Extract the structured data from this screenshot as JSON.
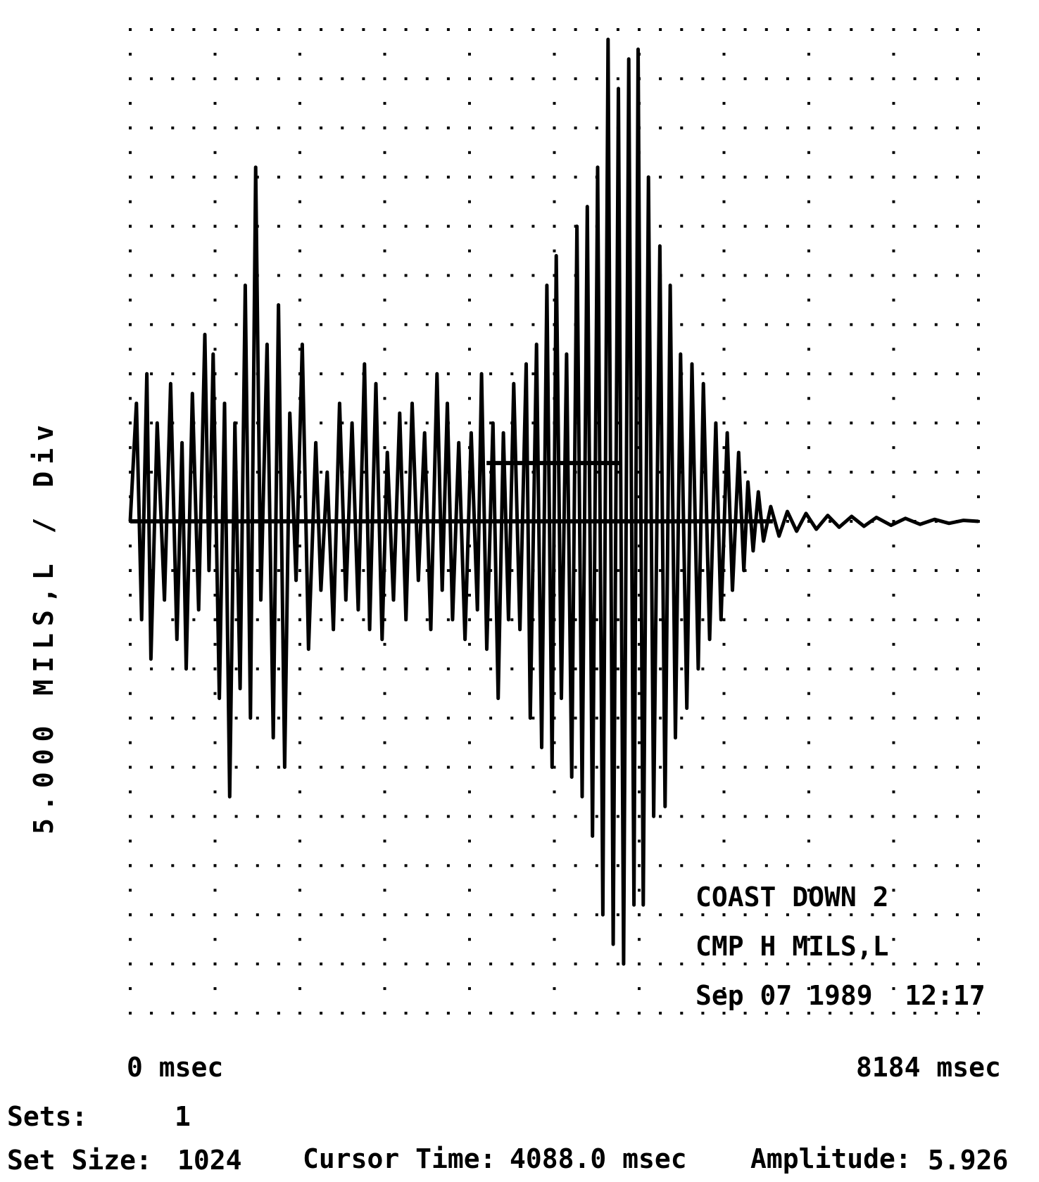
{
  "chart_data": {
    "type": "line",
    "annotation_lines": [
      "COAST DOWN 2",
      "CMP H MILS,L",
      "Sep 07 1989  12:17"
    ],
    "ylabel": "5.000 MILS,L / Div",
    "xlabel_start": "0 msec",
    "xlabel_end": "8184 msec",
    "xlim": [
      0,
      8184
    ],
    "ylim": [
      -50,
      50
    ],
    "grid": true,
    "grid_divisions": {
      "x": 10,
      "y": 20
    },
    "cursor_time": 4088.0,
    "series": [
      {
        "points": [
          [
            0,
            0
          ],
          [
            60,
            12
          ],
          [
            110,
            -10
          ],
          [
            160,
            15
          ],
          [
            200,
            -14
          ],
          [
            260,
            10
          ],
          [
            330,
            -8
          ],
          [
            390,
            14
          ],
          [
            450,
            -12
          ],
          [
            500,
            8
          ],
          [
            540,
            -15
          ],
          [
            600,
            13
          ],
          [
            660,
            -9
          ],
          [
            720,
            19
          ],
          [
            760,
            -5
          ],
          [
            800,
            17
          ],
          [
            860,
            -18
          ],
          [
            910,
            12
          ],
          [
            960,
            -28
          ],
          [
            1010,
            10
          ],
          [
            1060,
            -17
          ],
          [
            1110,
            24
          ],
          [
            1160,
            -20
          ],
          [
            1210,
            36
          ],
          [
            1260,
            -8
          ],
          [
            1320,
            18
          ],
          [
            1380,
            -22
          ],
          [
            1430,
            22
          ],
          [
            1490,
            -25
          ],
          [
            1540,
            11
          ],
          [
            1600,
            -6
          ],
          [
            1660,
            18
          ],
          [
            1720,
            -13
          ],
          [
            1790,
            8
          ],
          [
            1840,
            -7
          ],
          [
            1900,
            5
          ],
          [
            1960,
            -11
          ],
          [
            2020,
            12
          ],
          [
            2080,
            -8
          ],
          [
            2140,
            10
          ],
          [
            2200,
            -9
          ],
          [
            2260,
            16
          ],
          [
            2310,
            -11
          ],
          [
            2370,
            14
          ],
          [
            2430,
            -12
          ],
          [
            2480,
            7
          ],
          [
            2540,
            -8
          ],
          [
            2600,
            11
          ],
          [
            2660,
            -10
          ],
          [
            2720,
            12
          ],
          [
            2780,
            -6
          ],
          [
            2840,
            9
          ],
          [
            2900,
            -11
          ],
          [
            2960,
            15
          ],
          [
            3010,
            -7
          ],
          [
            3060,
            12
          ],
          [
            3110,
            -10
          ],
          [
            3170,
            8
          ],
          [
            3230,
            -12
          ],
          [
            3290,
            9
          ],
          [
            3350,
            -9
          ],
          [
            3390,
            15
          ],
          [
            3440,
            -13
          ],
          [
            3500,
            10
          ],
          [
            3550,
            -18
          ],
          [
            3600,
            9
          ],
          [
            3650,
            -10
          ],
          [
            3700,
            14
          ],
          [
            3760,
            -11
          ],
          [
            3820,
            16
          ],
          [
            3860,
            -20
          ],
          [
            3920,
            18
          ],
          [
            3970,
            -23
          ],
          [
            4020,
            24
          ],
          [
            4070,
            -25
          ],
          [
            4110,
            27
          ],
          [
            4160,
            -18
          ],
          [
            4210,
            17
          ],
          [
            4260,
            -26
          ],
          [
            4310,
            30
          ],
          [
            4360,
            -28
          ],
          [
            4410,
            32
          ],
          [
            4460,
            -32
          ],
          [
            4510,
            36
          ],
          [
            4560,
            -40
          ],
          [
            4610,
            49
          ],
          [
            4660,
            -43
          ],
          [
            4710,
            44
          ],
          [
            4760,
            -45
          ],
          [
            4810,
            47
          ],
          [
            4860,
            -39
          ],
          [
            4900,
            48
          ],
          [
            4950,
            -39
          ],
          [
            5000,
            35
          ],
          [
            5050,
            -30
          ],
          [
            5110,
            28
          ],
          [
            5160,
            -29
          ],
          [
            5210,
            24
          ],
          [
            5260,
            -22
          ],
          [
            5310,
            17
          ],
          [
            5370,
            -19
          ],
          [
            5420,
            16
          ],
          [
            5480,
            -15
          ],
          [
            5530,
            14
          ],
          [
            5590,
            -12
          ],
          [
            5650,
            10
          ],
          [
            5700,
            -10
          ],
          [
            5760,
            9
          ],
          [
            5810,
            -7
          ],
          [
            5870,
            7
          ],
          [
            5920,
            -5
          ],
          [
            5960,
            4
          ],
          [
            6010,
            -3
          ],
          [
            6060,
            3
          ],
          [
            6110,
            -2
          ],
          [
            6180,
            1.5
          ],
          [
            6260,
            -1.5
          ],
          [
            6340,
            1
          ],
          [
            6430,
            -1
          ],
          [
            6520,
            0.8
          ],
          [
            6620,
            -0.8
          ],
          [
            6730,
            0.6
          ],
          [
            6840,
            -0.6
          ],
          [
            6960,
            0.5
          ],
          [
            7080,
            -0.5
          ],
          [
            7200,
            0.4
          ],
          [
            7340,
            -0.4
          ],
          [
            7480,
            0.3
          ],
          [
            7620,
            -0.3
          ],
          [
            7760,
            0.2
          ],
          [
            7900,
            -0.2
          ],
          [
            8040,
            0.1
          ],
          [
            8184,
            0
          ]
        ]
      }
    ]
  },
  "footer": {
    "sets_label": "Sets:",
    "sets_value": "1",
    "set_size_label": "Set Size:",
    "set_size_value": "1024",
    "cursor_label": "Cursor Time:",
    "cursor_value": "4088.0 msec",
    "amplitude_label": "Amplitude:",
    "amplitude_value": "5.926"
  },
  "colors": {
    "background": "#ffffff",
    "trace": "#000000",
    "grid": "#000000"
  }
}
